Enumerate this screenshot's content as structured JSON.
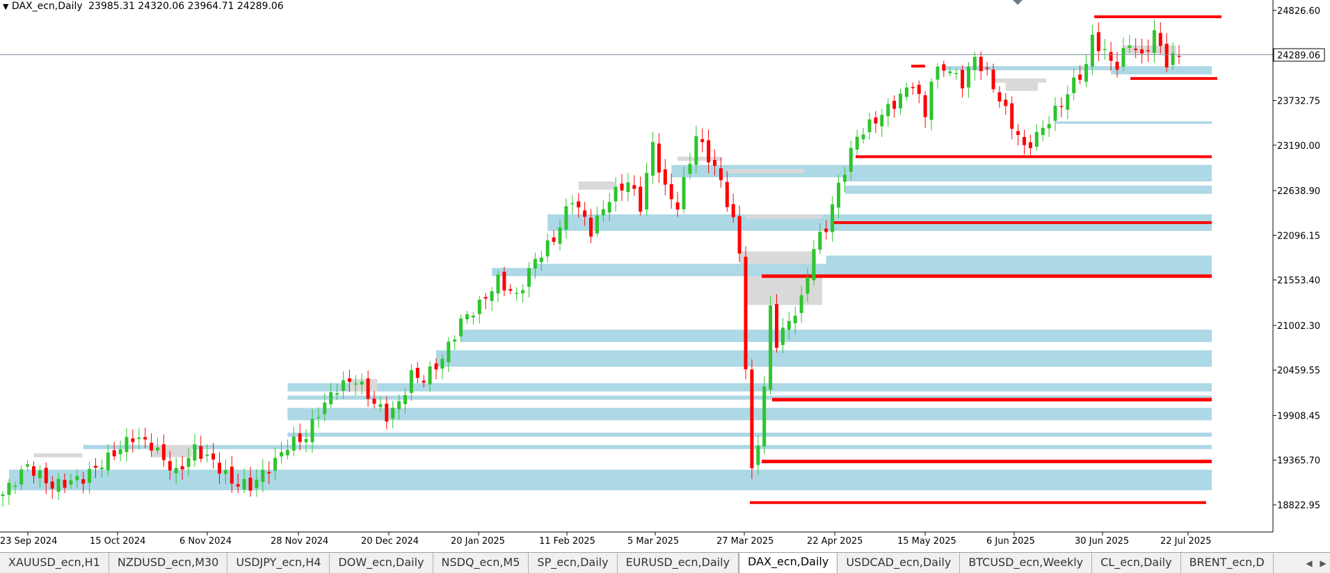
{
  "header": {
    "menu_arrow": "▼",
    "symbol": "DAX_ecn,Daily",
    "ohlc": "23985.31 24320.06 23964.71 24289.06"
  },
  "price_tag": "24289.06",
  "chart_data": {
    "type": "candlestick",
    "symbol": "DAX_ecn",
    "timeframe": "Daily",
    "last_price": 24289.06,
    "y_ticks": [
      24826.6,
      23732.75,
      23190.0,
      22638.9,
      22096.15,
      21553.4,
      21002.3,
      20459.55,
      19908.45,
      19365.7,
      18822.95
    ],
    "y_tick_labels": [
      "24826.60",
      "23732.75",
      "23190.00",
      "22638.90",
      "22096.15",
      "21553.40",
      "21002.30",
      "20459.55",
      "19908.45",
      "19365.70",
      "18822.95"
    ],
    "x_tick_labels": [
      "23 Sep 2024",
      "15 Oct 2024",
      "6 Nov 2024",
      "28 Nov 2024",
      "20 Dec 2024",
      "20 Jan 2025",
      "11 Feb 2025",
      "5 Mar 2025",
      "27 Mar 2025",
      "22 Apr 2025",
      "15 May 2025",
      "6 Jun 2025",
      "30 Jun 2025",
      "22 Jul 2025"
    ],
    "ylim": [
      18700,
      25000
    ],
    "grid": false,
    "colors": {
      "bull": "#2ec42e",
      "bear": "#ff0000",
      "demand_zone": "#add8e6",
      "neutral_zone": "#d9d9d9",
      "level": "#ff0000",
      "price_line": "#8090a0"
    },
    "close_path": [
      [
        0,
        18950
      ],
      [
        4,
        19300
      ],
      [
        8,
        19050
      ],
      [
        13,
        19150
      ],
      [
        18,
        19450
      ],
      [
        21,
        19650
      ],
      [
        24,
        19550
      ],
      [
        28,
        19200
      ],
      [
        31,
        19500
      ],
      [
        34,
        19350
      ],
      [
        37,
        19100
      ],
      [
        40,
        19050
      ],
      [
        44,
        19350
      ],
      [
        46,
        19550
      ],
      [
        49,
        19650
      ],
      [
        51,
        19950
      ],
      [
        54,
        20250
      ],
      [
        57,
        20350
      ],
      [
        59,
        20150
      ],
      [
        62,
        19900
      ],
      [
        64,
        20050
      ],
      [
        66,
        20400
      ],
      [
        68,
        20350
      ],
      [
        71,
        20600
      ],
      [
        74,
        21050
      ],
      [
        77,
        21250
      ],
      [
        80,
        21550
      ],
      [
        83,
        21350
      ],
      [
        86,
        21800
      ],
      [
        89,
        22050
      ],
      [
        92,
        22550
      ],
      [
        95,
        22150
      ],
      [
        98,
        22550
      ],
      [
        101,
        22750
      ],
      [
        103,
        22450
      ],
      [
        105,
        23200
      ],
      [
        107,
        22650
      ],
      [
        109,
        22450
      ],
      [
        112,
        23300
      ],
      [
        114,
        23050
      ],
      [
        116,
        22750
      ],
      [
        118,
        22250
      ],
      [
        119,
        21900
      ],
      [
        120,
        20500
      ],
      [
        121,
        19200
      ],
      [
        122,
        19600
      ],
      [
        123,
        20250
      ],
      [
        124,
        21200
      ],
      [
        125,
        20800
      ],
      [
        127,
        21050
      ],
      [
        129,
        21300
      ],
      [
        131,
        21950
      ],
      [
        133,
        22200
      ],
      [
        135,
        22700
      ],
      [
        136,
        22900
      ],
      [
        138,
        23300
      ],
      [
        141,
        23500
      ],
      [
        144,
        23700
      ],
      [
        147,
        23950
      ],
      [
        149,
        23550
      ],
      [
        150,
        24000
      ],
      [
        152,
        24150
      ],
      [
        155,
        23950
      ],
      [
        157,
        24250
      ],
      [
        159,
        24050
      ],
      [
        161,
        23750
      ],
      [
        163,
        23450
      ],
      [
        165,
        23150
      ],
      [
        167,
        23300
      ],
      [
        169,
        23500
      ],
      [
        171,
        23700
      ],
      [
        173,
        23950
      ],
      [
        175,
        24150
      ],
      [
        176,
        24500
      ],
      [
        178,
        24300
      ],
      [
        180,
        24150
      ],
      [
        182,
        24450
      ],
      [
        184,
        24250
      ],
      [
        186,
        24550
      ],
      [
        188,
        24200
      ],
      [
        190,
        24289
      ]
    ],
    "series": [
      {
        "name": "",
        "type": "demand_zones",
        "values": [
          [
            1,
            19000,
            19250
          ],
          [
            13,
            19500,
            19550
          ],
          [
            46,
            19650,
            19700
          ],
          [
            46,
            19850,
            20000
          ],
          [
            46,
            20100,
            20150
          ],
          [
            46,
            20200,
            20300
          ],
          [
            70,
            20500,
            20700
          ],
          [
            74,
            20800,
            20950
          ],
          [
            79,
            21600,
            21700
          ],
          [
            86,
            21700,
            21750
          ],
          [
            88,
            22150,
            22350
          ],
          [
            108,
            22800,
            22950
          ],
          [
            136,
            22600,
            22700
          ],
          [
            136,
            22750,
            22950
          ],
          [
            133,
            21600,
            21700
          ],
          [
            133,
            21750,
            21850
          ],
          [
            170,
            23450,
            23480
          ],
          [
            179,
            24050,
            24100
          ],
          [
            152,
            24100,
            24150
          ]
        ]
      },
      {
        "name": "",
        "type": "neutral_zones",
        "values": [
          [
            5,
            19400,
            19450
          ],
          [
            24,
            19400,
            19550
          ],
          [
            56,
            20200,
            20350
          ],
          [
            93,
            22650,
            22750
          ],
          [
            117,
            22850,
            22900
          ],
          [
            119,
            21750,
            21900
          ],
          [
            120,
            21250,
            21600
          ],
          [
            120,
            22300,
            22350
          ],
          [
            160,
            23950,
            24000
          ],
          [
            162,
            23850,
            23950
          ],
          [
            109,
            23000,
            23050
          ],
          [
            181,
            24300,
            24400
          ]
        ]
      },
      {
        "name": "",
        "type": "levels",
        "values": [
          24750,
          24000,
          23050,
          22250,
          21600,
          20100,
          19350,
          18850,
          24150
        ]
      }
    ]
  },
  "tabs": [
    {
      "label": "XAUUSD_ecn,H1",
      "active": false
    },
    {
      "label": "NZDUSD_ecn,M30",
      "active": false
    },
    {
      "label": "USDJPY_ecn,H4",
      "active": false
    },
    {
      "label": "DOW_ecn,Daily",
      "active": false
    },
    {
      "label": "NSDQ_ecn,M5",
      "active": false
    },
    {
      "label": "SP_ecn,Daily",
      "active": false
    },
    {
      "label": "EURUSD_ecn,Daily",
      "active": false
    },
    {
      "label": "DAX_ecn,Daily",
      "active": true
    },
    {
      "label": "USDCAD_ecn,Daily",
      "active": false
    },
    {
      "label": "BTCUSD_ecn,Weekly",
      "active": false
    },
    {
      "label": "CL_ecn,Daily",
      "active": false
    },
    {
      "label": "BRENT_ecn,D",
      "active": false
    }
  ],
  "tab_scroll": {
    "left": "◀",
    "right": "▶"
  }
}
